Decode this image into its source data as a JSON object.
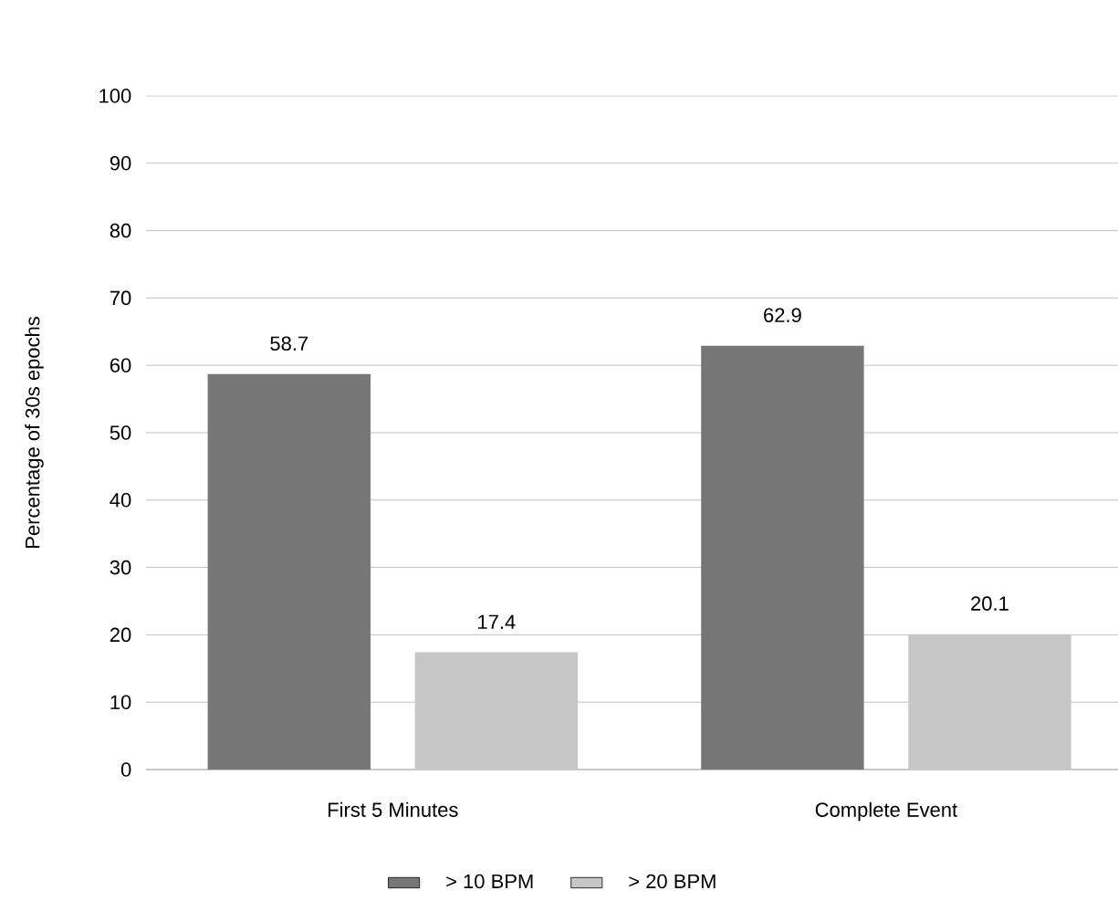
{
  "chart_data": {
    "type": "bar",
    "ylabel": "Percentage of 30s epochs",
    "categories": [
      "First 5 Minutes",
      "Complete Event"
    ],
    "series": [
      {
        "name": "> 10 BPM",
        "color": "#777777",
        "values": [
          58.7,
          62.9
        ]
      },
      {
        "name": "> 20 BPM",
        "color": "#c6c6c6",
        "values": [
          17.4,
          20.1
        ]
      }
    ],
    "ylim": [
      0,
      100
    ],
    "yticks": [
      0,
      10,
      20,
      30,
      40,
      50,
      60,
      70,
      80,
      90,
      100
    ],
    "grid": "y",
    "legend": "bottom",
    "data_labels": true
  }
}
